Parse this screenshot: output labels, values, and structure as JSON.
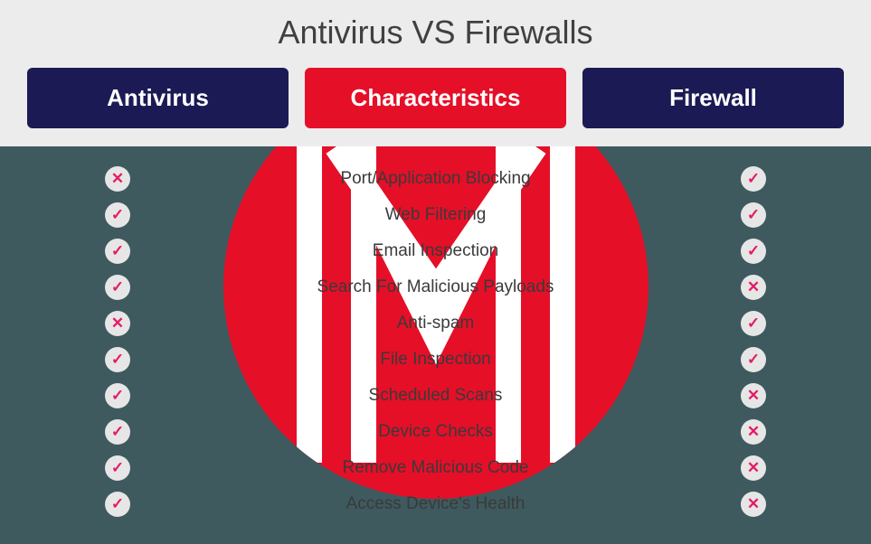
{
  "title": "Antivirus VS Firewalls",
  "headers": {
    "left": {
      "label": "Antivirus",
      "bg": "#1b1a54"
    },
    "mid": {
      "label": "Characteristics",
      "bg": "#e50f28"
    },
    "right": {
      "label": "Firewall",
      "bg": "#1b1a54"
    }
  },
  "colors": {
    "top_bg": "#ececec",
    "bottom_bg": "#3e5a5f",
    "circle": "#e50f28",
    "badge_bg": "#e6e6e6",
    "mark_color": "#e41b64",
    "text_color": "#3a3a3a",
    "logo_stroke": "#ffffff"
  },
  "rows": [
    {
      "label": "Port/Application Blocking",
      "antivirus": false,
      "firewall": true
    },
    {
      "label": "Web Filtering",
      "antivirus": true,
      "firewall": true
    },
    {
      "label": "Email Inspection",
      "antivirus": true,
      "firewall": true
    },
    {
      "label": "Search For Malicious Payloads",
      "antivirus": true,
      "firewall": false
    },
    {
      "label": "Anti-spam",
      "antivirus": false,
      "firewall": true
    },
    {
      "label": "File Inspection",
      "antivirus": true,
      "firewall": true
    },
    {
      "label": "Scheduled Scans",
      "antivirus": true,
      "firewall": false
    },
    {
      "label": "Device Checks",
      "antivirus": true,
      "firewall": false
    },
    {
      "label": "Remove Malicious Code",
      "antivirus": true,
      "firewall": false
    },
    {
      "label": "Access Device's Health",
      "antivirus": true,
      "firewall": false
    }
  ],
  "marks": {
    "check": "✓",
    "cross": "✕"
  }
}
